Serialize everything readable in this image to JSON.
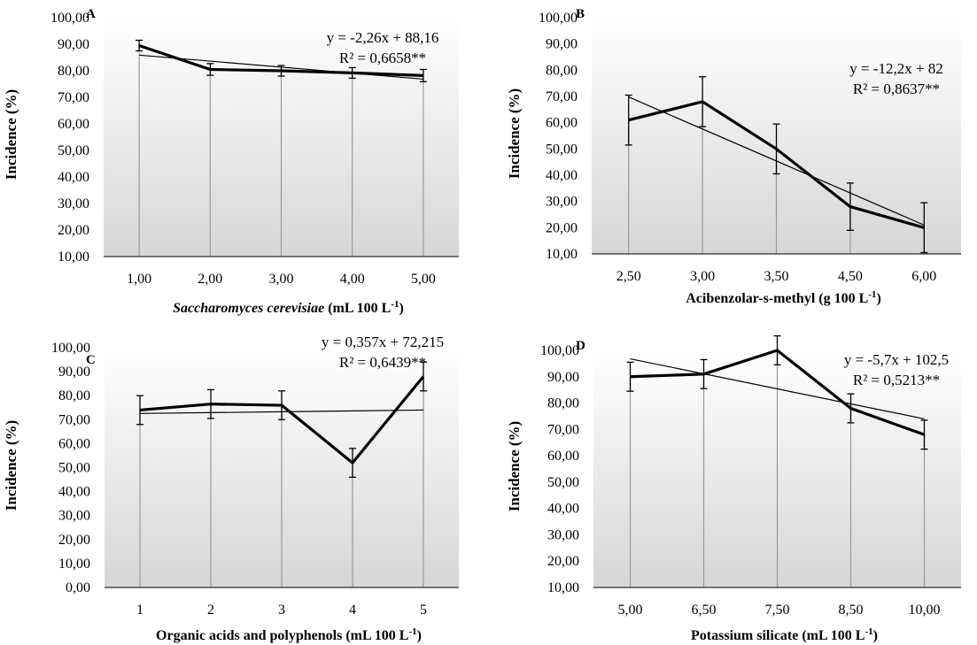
{
  "chart_data": [
    {
      "type": "line",
      "panel": "A",
      "ylabel": "Incidence (%)",
      "xlabel_italic": "Saccharomyces cerevisiae",
      "xlabel_rest": " (mL 100 L",
      "xlabel_sup": "-1",
      "xlabel_end": ")",
      "categories": [
        "1,00",
        "2,00",
        "3,00",
        "4,00",
        "5,00"
      ],
      "yticks": [
        "10,00",
        "20,00",
        "30,00",
        "40,00",
        "50,00",
        "60,00",
        "70,00",
        "80,00",
        "90,00",
        "100,00"
      ],
      "ylim": [
        10,
        100
      ],
      "values": [
        89.5,
        80.5,
        80.0,
        79.2,
        78.2
      ],
      "error": [
        2.0,
        2.2,
        2.0,
        2.0,
        2.3
      ],
      "trend": {
        "slope": -2.26,
        "intercept": 88.16
      },
      "equation": "y = -2,26x + 88,16",
      "r2": "R² = 0,6658**",
      "grid": false
    },
    {
      "type": "line",
      "panel": "B",
      "ylabel": "Incidence (%)",
      "xlabel_italic": "",
      "xlabel_rest": "Acibenzolar-s-methyl (g 100 L",
      "xlabel_sup": "-1",
      "xlabel_end": ")",
      "categories": [
        "2,50",
        "3,00",
        "3,50",
        "4,50",
        "6,00"
      ],
      "yticks": [
        "10,00",
        "20,00",
        "30,00",
        "40,00",
        "50,00",
        "60,00",
        "70,00",
        "80,00",
        "90,00",
        "100,00"
      ],
      "ylim": [
        10,
        100
      ],
      "values": [
        61.0,
        68.0,
        50.0,
        28.0,
        20.0
      ],
      "error": [
        9.5,
        9.5,
        9.5,
        9.0,
        9.5
      ],
      "trend": {
        "slope": -12.2,
        "intercept": 82
      },
      "equation": "y = -12,2x + 82",
      "r2": "R² = 0,8637**",
      "grid": false
    },
    {
      "type": "line",
      "panel": "C",
      "ylabel": "Incidence (%)",
      "xlabel_italic": "",
      "xlabel_rest": "Organic acids and polyphenols (mL 100 L",
      "xlabel_sup": "-1",
      "xlabel_end": ")",
      "categories": [
        "1",
        "2",
        "3",
        "4",
        "5"
      ],
      "yticks": [
        "0,00",
        "10,00",
        "20,00",
        "30,00",
        "40,00",
        "50,00",
        "60,00",
        "70,00",
        "80,00",
        "90,00",
        "100,00"
      ],
      "ylim": [
        0,
        100
      ],
      "values": [
        74.0,
        76.5,
        76.0,
        52.0,
        88.0
      ],
      "error": [
        6.0,
        6.0,
        6.0,
        6.0,
        6.0
      ],
      "trend": {
        "slope": 0.357,
        "intercept": 72.215
      },
      "equation": "y = 0,357x + 72,215",
      "r2": "R² = 0,6439**",
      "grid": false
    },
    {
      "type": "line",
      "panel": "D",
      "ylabel": "Incidence (%)",
      "xlabel_italic": "",
      "xlabel_rest": "Potassium silicate (mL 100 L",
      "xlabel_sup": "-1",
      "xlabel_end": ")",
      "categories": [
        "5,00",
        "6,50",
        "7,50",
        "8,50",
        "10,00"
      ],
      "yticks": [
        "10,00",
        "20,00",
        "30,00",
        "40,00",
        "50,00",
        "60,00",
        "70,00",
        "80,00",
        "90,00",
        "100,00"
      ],
      "ylim": [
        10,
        100
      ],
      "values": [
        90.0,
        91.0,
        100.0,
        78.0,
        68.0
      ],
      "error": [
        5.5,
        5.5,
        5.5,
        5.5,
        5.5
      ],
      "trend": {
        "slope": -5.7,
        "intercept": 102.5
      },
      "equation": "y = -5,7x + 102,5",
      "r2": "R² = 0,5213**",
      "grid": false
    }
  ]
}
